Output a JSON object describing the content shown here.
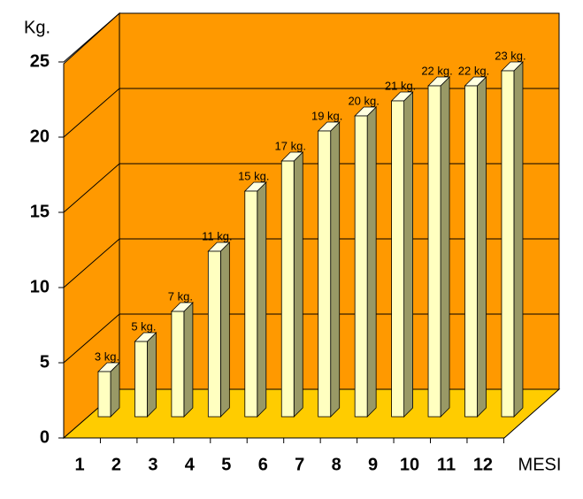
{
  "chart_data": {
    "type": "bar",
    "ylabel": "Kg.",
    "xlabel": "MESI",
    "categories": [
      "1",
      "2",
      "3",
      "4",
      "5",
      "6",
      "7",
      "8",
      "9",
      "10",
      "11",
      "12"
    ],
    "values": [
      3,
      5,
      7,
      11,
      15,
      17,
      19,
      20,
      21,
      22,
      22,
      23
    ],
    "value_labels": [
      "3 kg.",
      "5 kg.",
      "7 kg.",
      "11 kg.",
      "15 kg.",
      "17 kg.",
      "19 kg.",
      "20 kg.",
      "21 kg.",
      "22 kg.",
      "22 kg.",
      "23 kg."
    ],
    "color": "#ffffc0",
    "ylim": [
      0,
      25
    ],
    "yticks": [
      0,
      5,
      10,
      15,
      20,
      25
    ],
    "grid": true
  }
}
